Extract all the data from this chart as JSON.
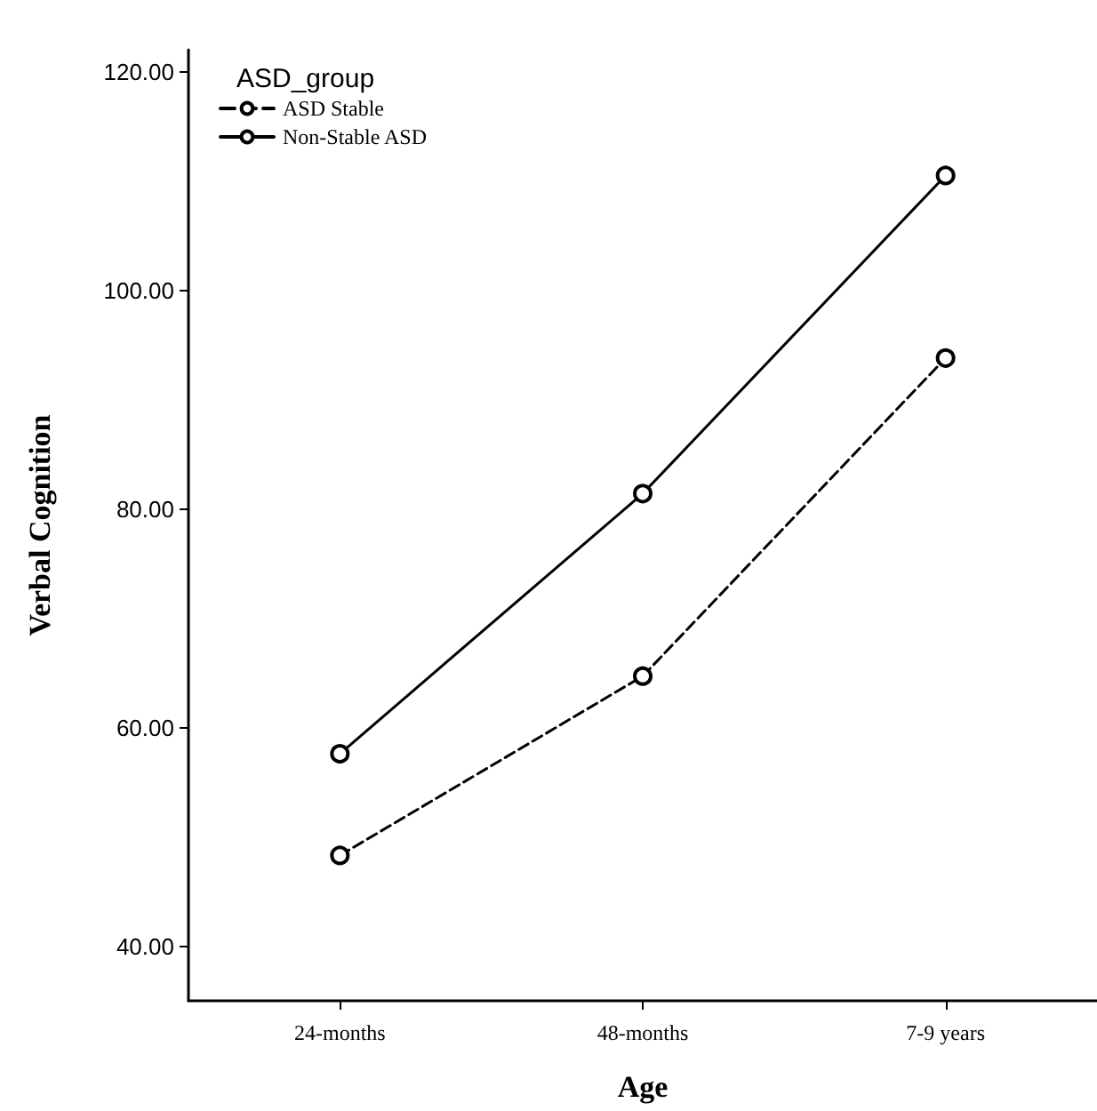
{
  "chart_data": {
    "type": "line",
    "xlabel": "Age",
    "ylabel": "Verbal Cognition",
    "legend_title": "ASD_group",
    "categories": [
      "24-months",
      "48-months",
      "7-9 years"
    ],
    "series": [
      {
        "name": "ASD Stable",
        "color": "#000000",
        "line_style": "dashed",
        "values": [
          48.3,
          64.7,
          93.8
        ]
      },
      {
        "name": "Non-Stable ASD",
        "color": "#000000",
        "line_style": "solid",
        "values": [
          57.6,
          81.4,
          110.5
        ]
      }
    ],
    "ylim": [
      35,
      122
    ],
    "yticks": [
      {
        "value": 40,
        "label": "40.00"
      },
      {
        "value": 60,
        "label": "60.00"
      },
      {
        "value": 80,
        "label": "80.00"
      },
      {
        "value": 100,
        "label": "100.00"
      },
      {
        "value": 120,
        "label": "120.00"
      }
    ],
    "marker": "circle",
    "grid": false,
    "legend": "top left"
  }
}
